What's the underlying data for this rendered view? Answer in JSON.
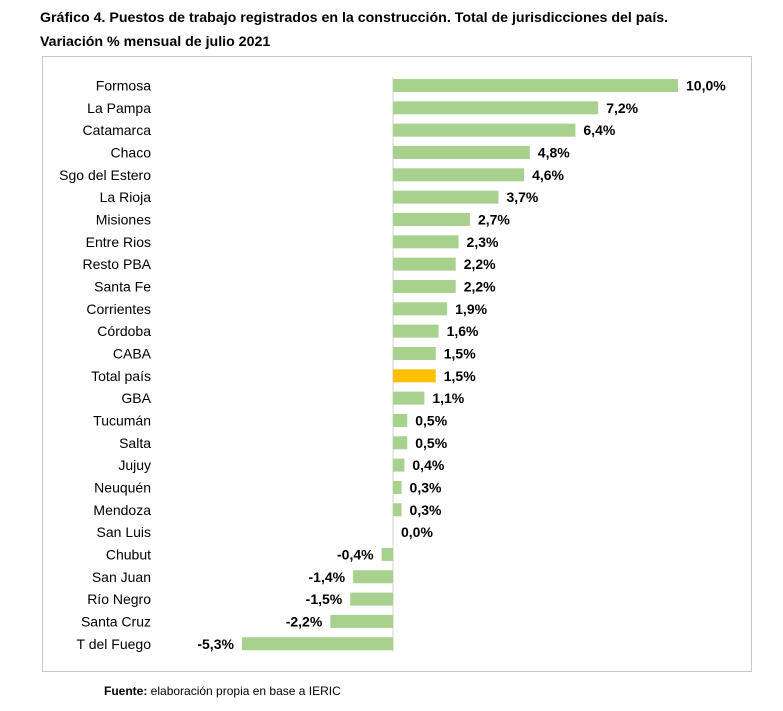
{
  "header": {
    "title_line1": "Gráfico 4. Puestos de trabajo registrados en la construcción. Total de jurisdicciones del país.",
    "title_line2": "Variación % mensual de julio 2021"
  },
  "footer": {
    "source_label": "Fuente:",
    "source_text": " elaboración propia en base a IERIC"
  },
  "colors": {
    "bar": "#a9d18e",
    "highlight": "#ffc000"
  },
  "chart_data": {
    "type": "bar",
    "orientation": "horizontal",
    "categories": [
      "Formosa",
      "La Pampa",
      "Catamarca",
      "Chaco",
      "Sgo del Estero",
      "La Rioja",
      "Misiones",
      "Entre Rios",
      "Resto PBA",
      "Santa Fe",
      "Corrientes",
      "Córdoba",
      "CABA",
      "Total país",
      "GBA",
      "Tucumán",
      "Salta",
      "Jujuy",
      "Neuquén",
      "Mendoza",
      "San Luis",
      "Chubut",
      "San Juan",
      "Río Negro",
      "Santa Cruz",
      "T del Fuego"
    ],
    "values": [
      10.0,
      7.2,
      6.4,
      4.8,
      4.6,
      3.7,
      2.7,
      2.3,
      2.2,
      2.2,
      1.9,
      1.6,
      1.5,
      1.5,
      1.1,
      0.5,
      0.5,
      0.4,
      0.3,
      0.3,
      0.0,
      -0.4,
      -1.4,
      -1.5,
      -2.2,
      -5.3
    ],
    "labels": [
      "10,0%",
      "7,2%",
      "6,4%",
      "4,8%",
      "4,6%",
      "3,7%",
      "2,7%",
      "2,3%",
      "2,2%",
      "2,2%",
      "1,9%",
      "1,6%",
      "1,5%",
      "1,5%",
      "1,1%",
      "0,5%",
      "0,5%",
      "0,4%",
      "0,3%",
      "0,3%",
      "0,0%",
      "-0,4%",
      "-1,4%",
      "-1,5%",
      "-2,2%",
      "-5,3%"
    ],
    "highlight_category": "Total país",
    "xlim": [
      -5.3,
      10.0
    ],
    "grid": false,
    "legend": false
  }
}
